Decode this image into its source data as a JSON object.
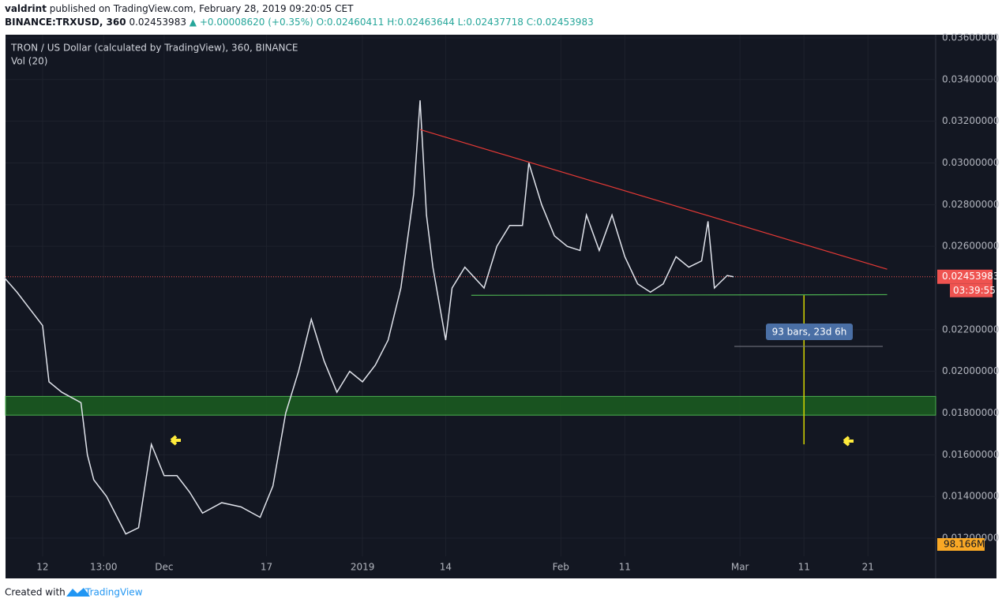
{
  "header": {
    "author": "valdrint",
    "published": "published on TradingView.com, February 28, 2019 09:20:05 CET",
    "symbol": "BINANCE:TRXUSD, 360",
    "last": "0.02453983",
    "change": "▲ +0.00008620 (+0.35%)",
    "open": "O:0.02460411",
    "high": "H:0.02463644",
    "low": "L:0.02437718",
    "close": "C:0.02453983"
  },
  "footer": {
    "created": "Created with",
    "brand": "TradingView"
  },
  "chart_data": {
    "type": "line",
    "title": "TRON / US Dollar (calculated by TradingView), 360, BINANCE",
    "indicator": "Vol (20)",
    "color": "#e0e3eb",
    "x": [
      "2018-11-06",
      "2018-11-08",
      "2018-11-10",
      "2018-11-12",
      "2018-11-13",
      "2018-11-15",
      "2018-11-18",
      "2018-11-19",
      "2018-11-20",
      "2018-11-22",
      "2018-11-25",
      "2018-11-27",
      "2018-11-29",
      "2018-12-01",
      "2018-12-03",
      "2018-12-05",
      "2018-12-07",
      "2018-12-10",
      "2018-12-13",
      "2018-12-16",
      "2018-12-18",
      "2018-12-20",
      "2018-12-22",
      "2018-12-24",
      "2018-12-26",
      "2018-12-28",
      "2018-12-30",
      "2019-01-01",
      "2019-01-03",
      "2019-01-05",
      "2019-01-07",
      "2019-01-09",
      "2019-01-10",
      "2019-01-11",
      "2019-01-12",
      "2019-01-14",
      "2019-01-15",
      "2019-01-17",
      "2019-01-20",
      "2019-01-22",
      "2019-01-24",
      "2019-01-26",
      "2019-01-27",
      "2019-01-29",
      "2019-01-31",
      "2019-02-02",
      "2019-02-04",
      "2019-02-05",
      "2019-02-07",
      "2019-02-09",
      "2019-02-11",
      "2019-02-13",
      "2019-02-15",
      "2019-02-17",
      "2019-02-19",
      "2019-02-21",
      "2019-02-23",
      "2019-02-24",
      "2019-02-25",
      "2019-02-27",
      "2019-02-28"
    ],
    "values": [
      0.0245,
      0.0238,
      0.023,
      0.0222,
      0.0195,
      0.019,
      0.0185,
      0.016,
      0.0148,
      0.014,
      0.0122,
      0.0125,
      0.0165,
      0.015,
      0.015,
      0.0142,
      0.0132,
      0.0137,
      0.0135,
      0.013,
      0.0145,
      0.018,
      0.02,
      0.0225,
      0.0205,
      0.019,
      0.02,
      0.0195,
      0.0203,
      0.0215,
      0.024,
      0.0285,
      0.033,
      0.0275,
      0.025,
      0.0215,
      0.024,
      0.025,
      0.024,
      0.026,
      0.027,
      0.027,
      0.03,
      0.028,
      0.0265,
      0.026,
      0.0258,
      0.0275,
      0.0258,
      0.0275,
      0.0255,
      0.0242,
      0.0238,
      0.0242,
      0.0255,
      0.025,
      0.0253,
      0.0272,
      0.024,
      0.0246,
      0.02453983
    ],
    "xlim": [
      "2018-11-06T05:00",
      "2019-03-31T14:00"
    ],
    "xticks": [
      {
        "value": "2018-11-12",
        "label": "12"
      },
      {
        "value": "2018-11-21T13:00",
        "label": "13:00"
      },
      {
        "value": "2018-12-01",
        "label": "Dec"
      },
      {
        "value": "2018-12-17",
        "label": "17"
      },
      {
        "value": "2019-01-01",
        "label": "2019"
      },
      {
        "value": "2019-01-14",
        "label": "14"
      },
      {
        "value": "2019-02-01",
        "label": "Feb"
      },
      {
        "value": "2019-02-11",
        "label": "11"
      },
      {
        "value": "2019-03-01",
        "label": "Mar"
      },
      {
        "value": "2019-03-11",
        "label": "11"
      },
      {
        "value": "2019-03-21",
        "label": "21"
      }
    ],
    "ylim": [
      0.01113,
      0.03615
    ],
    "yticks": [
      {
        "value": 0.036,
        "label": "0.03600000"
      },
      {
        "value": 0.034,
        "label": "0.03400000"
      },
      {
        "value": 0.032,
        "label": "0.03200000"
      },
      {
        "value": 0.03,
        "label": "0.03000000"
      },
      {
        "value": 0.028,
        "label": "0.02800000"
      },
      {
        "value": 0.026,
        "label": "0.02600000"
      },
      {
        "value": 0.022,
        "label": "0.02200000"
      },
      {
        "value": 0.02,
        "label": "0.02000000"
      },
      {
        "value": 0.018,
        "label": "0.01800000"
      },
      {
        "value": 0.016,
        "label": "0.01600000"
      },
      {
        "value": 0.014,
        "label": "0.01400000"
      },
      {
        "value": 0.012,
        "label": "0.01200000"
      }
    ],
    "grid": true,
    "last_price": {
      "value": 0.02453983,
      "label": "0.02453983",
      "countdown": "03:39:55",
      "color": "#ef5350"
    },
    "volume_label": "98.166M",
    "trendlines": [
      {
        "x": [
          "2019-01-10",
          "2019-03-24"
        ],
        "values": [
          0.0316,
          0.0249
        ],
        "color": "#e53935"
      },
      {
        "x": [
          "2019-01-18",
          "2019-03-24"
        ],
        "values": [
          0.02365,
          0.02368
        ],
        "color": "#4caf50"
      }
    ],
    "zone": {
      "values": [
        0.0179,
        0.0188
      ],
      "color": "#1b5e20"
    },
    "measure": {
      "x": "2019-03-11",
      "values": [
        0.02365,
        0.0165
      ],
      "label": "93 bars, 23d 6h",
      "color": "#d4d600"
    }
  }
}
